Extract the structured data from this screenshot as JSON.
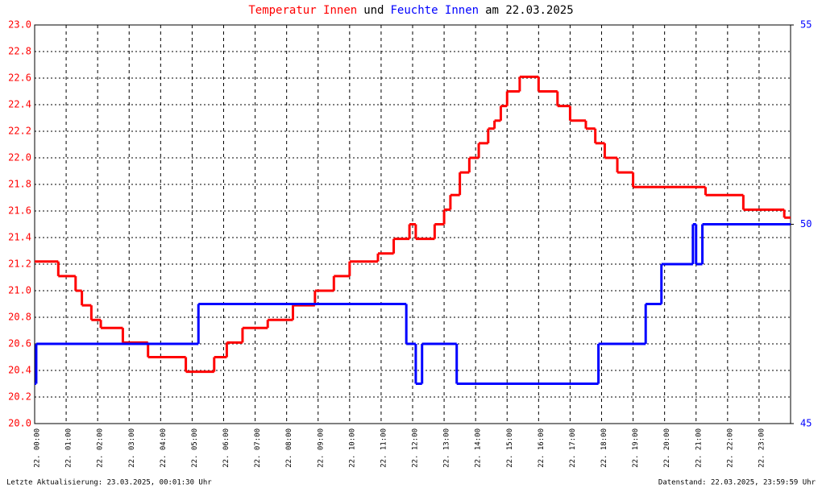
{
  "chart_data": {
    "type": "step",
    "title_parts": [
      {
        "text": "Temperatur Innen",
        "color": "#ff0000"
      },
      {
        "text": "und",
        "color": "#000000"
      },
      {
        "text": "Feuchte Innen",
        "color": "#0000ff"
      },
      {
        "text": "am 22.03.2025",
        "color": "#000000"
      }
    ],
    "footer_left": "Letzte Aktualisierung: 23.03.2025, 00:01:30 Uhr",
    "footer_right": "Datenstand: 22.03.2025, 23:59:59 Uhr",
    "xlim": [
      0,
      24
    ],
    "xticks": [
      {
        "value": 0,
        "label": "22. 00:00"
      },
      {
        "value": 1,
        "label": "22. 01:00"
      },
      {
        "value": 2,
        "label": "22. 02:00"
      },
      {
        "value": 3,
        "label": "22. 03:00"
      },
      {
        "value": 4,
        "label": "22. 04:00"
      },
      {
        "value": 5,
        "label": "22. 05:00"
      },
      {
        "value": 6,
        "label": "22. 06:00"
      },
      {
        "value": 7,
        "label": "22. 07:00"
      },
      {
        "value": 8,
        "label": "22. 08:00"
      },
      {
        "value": 9,
        "label": "22. 09:00"
      },
      {
        "value": 10,
        "label": "22. 10:00"
      },
      {
        "value": 11,
        "label": "22. 11:00"
      },
      {
        "value": 12,
        "label": "22. 12:00"
      },
      {
        "value": 13,
        "label": "22. 13:00"
      },
      {
        "value": 14,
        "label": "22. 14:00"
      },
      {
        "value": 15,
        "label": "22. 15:00"
      },
      {
        "value": 16,
        "label": "22. 16:00"
      },
      {
        "value": 17,
        "label": "22. 17:00"
      },
      {
        "value": 18,
        "label": "22. 18:00"
      },
      {
        "value": 19,
        "label": "22. 19:00"
      },
      {
        "value": 20,
        "label": "22. 20:00"
      },
      {
        "value": 21,
        "label": "22. 21:00"
      },
      {
        "value": 22,
        "label": "22. 22:00"
      },
      {
        "value": 23,
        "label": "22. 23:00"
      }
    ],
    "ylim": [
      20,
      23
    ],
    "yticks": [
      {
        "value": 20,
        "label": "20.0"
      },
      {
        "value": 20.2,
        "label": "20.2"
      },
      {
        "value": 20.4,
        "label": "20.4"
      },
      {
        "value": 20.6,
        "label": "20.6"
      },
      {
        "value": 20.8,
        "label": "20.8"
      },
      {
        "value": 21,
        "label": "21.0"
      },
      {
        "value": 21.2,
        "label": "21.2"
      },
      {
        "value": 21.4,
        "label": "21.4"
      },
      {
        "value": 21.6,
        "label": "21.6"
      },
      {
        "value": 21.8,
        "label": "21.8"
      },
      {
        "value": 22,
        "label": "22.0"
      },
      {
        "value": 22.2,
        "label": "22.2"
      },
      {
        "value": 22.4,
        "label": "22.4"
      },
      {
        "value": 22.6,
        "label": "22.6"
      },
      {
        "value": 22.8,
        "label": "22.8"
      },
      {
        "value": 23,
        "label": "23.0"
      }
    ],
    "y2lim": [
      45,
      55
    ],
    "y2ticks": [
      45,
      50,
      55
    ],
    "grid": true,
    "series": [
      {
        "name": "Temperatur Innen",
        "color": "#ff0000",
        "axis": "y",
        "x": [
          0,
          0.75,
          1.3,
          1.5,
          1.8,
          2.1,
          2.8,
          3.6,
          4.8,
          5.7,
          6.1,
          6.6,
          7.4,
          8.2,
          8.9,
          9.5,
          10.0,
          10.9,
          11.4,
          11.9,
          12.1,
          12.7,
          13.0,
          13.2,
          13.5,
          13.8,
          14.1,
          14.4,
          14.6,
          14.8,
          15.0,
          15.4,
          16.0,
          16.6,
          17.0,
          17.5,
          17.8,
          18.1,
          18.5,
          19.0,
          21.3,
          22.5,
          23.8
        ],
        "values": [
          21.22,
          21.11,
          21.0,
          20.89,
          20.78,
          20.72,
          20.61,
          20.5,
          20.39,
          20.5,
          20.61,
          20.72,
          20.78,
          20.89,
          21.0,
          21.11,
          21.22,
          21.28,
          21.39,
          21.5,
          21.39,
          21.5,
          21.61,
          21.72,
          21.89,
          22.0,
          22.11,
          22.22,
          22.28,
          22.39,
          22.5,
          22.61,
          22.5,
          22.39,
          22.28,
          22.22,
          22.11,
          22.0,
          21.89,
          21.78,
          21.72,
          21.61,
          21.55
        ]
      },
      {
        "name": "Feuchte Innen",
        "color": "#0000ff",
        "axis": "y2",
        "x": [
          0,
          0.05,
          5.2,
          11.8,
          12.1,
          12.3,
          13.4,
          17.9,
          19.4,
          19.9,
          20.9,
          21.0,
          21.2
        ],
        "values": [
          46,
          47,
          48,
          47,
          46,
          47,
          46,
          47,
          48,
          49,
          50,
          49,
          50
        ]
      }
    ]
  }
}
